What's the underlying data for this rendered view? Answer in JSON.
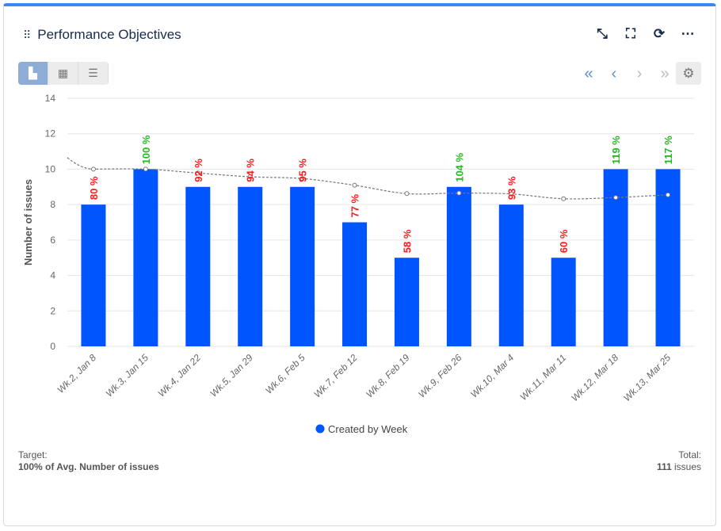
{
  "header": {
    "title": "Performance Objectives"
  },
  "icons": {
    "drag": "drag-handle-icon",
    "collapse": "collapse-icon",
    "fullscreen": "fullscreen-icon",
    "refresh": "refresh-icon",
    "more": "more-icon",
    "settings": "gear-icon"
  },
  "footer": {
    "target_label": "Target:",
    "target_value": "100% of Avg. Number of issues",
    "total_label": "Total:",
    "total_value": "111",
    "total_unit": "issues"
  },
  "colors": {
    "bar": "#0055ff",
    "above_target": "#22bb22",
    "below_target": "#ff1a1a",
    "trend": "#777777",
    "accent": "#3d86f5"
  },
  "chart_data": {
    "type": "bar",
    "categories": [
      "Wk.2, Jan 8",
      "Wk.3, Jan 15",
      "Wk.4, Jan 22",
      "Wk.5, Jan 29",
      "Wk.6, Feb 5",
      "Wk.7, Feb 12",
      "Wk.8, Feb 19",
      "Wk.9, Feb 26",
      "Wk.10, Mar 4",
      "Wk.11, Mar 11",
      "Wk.12, Mar 18",
      "Wk.13, Mar 25"
    ],
    "series": [
      {
        "name": "Created by Week",
        "values": [
          8,
          10,
          9,
          9,
          9,
          7,
          5,
          9,
          8,
          5,
          10,
          10
        ]
      }
    ],
    "target_pct_labels": [
      "80 %",
      "100 %",
      "92 %",
      "94 %",
      "95 %",
      "77 %",
      "58 %",
      "104 %",
      "93 %",
      "60 %",
      "119 %",
      "117 %"
    ],
    "target_line": [
      10.0,
      10.0,
      9.78,
      9.57,
      9.47,
      9.09,
      8.62,
      8.65,
      8.6,
      8.33,
      8.4,
      8.55
    ],
    "ylabel": "Number of issues",
    "ylim": [
      0,
      14
    ],
    "yticks": [
      0,
      2,
      4,
      6,
      8,
      10,
      12,
      14
    ],
    "grid": true,
    "legend": "bottom"
  }
}
